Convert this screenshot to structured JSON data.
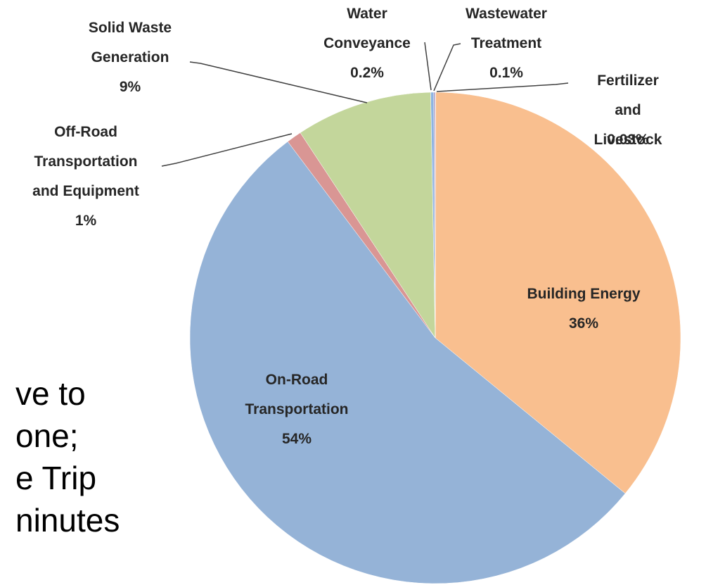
{
  "chart_data": {
    "type": "pie",
    "categories": [
      "Fertilizer and\nLivestock",
      "Building Energy",
      "On-Road\nTransportation",
      "Off-Road\nTransportation\nand Equipment",
      "Solid Waste\nGeneration",
      "Water\nConveyance",
      "Wastewater\nTreatment"
    ],
    "values": [
      0.03,
      36,
      54,
      1,
      9,
      0.2,
      0.1
    ],
    "value_labels": [
      "0.03%",
      "36%",
      "54%",
      "1%",
      "9%",
      "0.2%",
      "0.1%"
    ],
    "colors": [
      "#fac090",
      "#f9bf8f",
      "#95b3d7",
      "#d99694",
      "#c3d69b",
      "#8eb4e3",
      "#b3a2c7"
    ]
  },
  "slide_text": [
    "ve to",
    "one;",
    "e Trip",
    "ninutes"
  ]
}
